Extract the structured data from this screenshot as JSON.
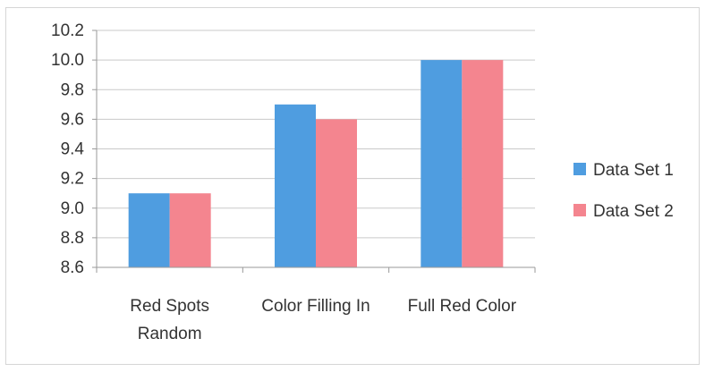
{
  "chart_data": {
    "type": "bar",
    "title": "",
    "xlabel": "",
    "ylabel": "",
    "categories": [
      [
        "Red Spots",
        "Random"
      ],
      [
        "Color Filling In"
      ],
      [
        "Full Red Color"
      ]
    ],
    "series": [
      {
        "name": "Data Set 1",
        "color": "#4f9de0",
        "values": [
          9.1,
          9.7,
          10.0
        ]
      },
      {
        "name": "Data Set 2",
        "color": "#f4858f",
        "values": [
          9.1,
          9.6,
          10.0
        ]
      }
    ],
    "ylim": [
      8.6,
      10.2
    ],
    "yticks": [
      "8.6",
      "8.8",
      "9.0",
      "9.2",
      "9.4",
      "9.6",
      "9.8",
      "10.0",
      "10.2"
    ],
    "grid": true,
    "legend_position": "right"
  }
}
